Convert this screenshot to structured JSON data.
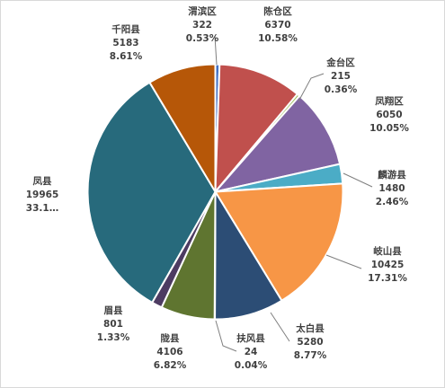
{
  "chart_data": {
    "type": "pie",
    "title": "",
    "start_angle_deg": 0,
    "direction": "clockwise",
    "slices": [
      {
        "name": "渭滨区",
        "value": "322",
        "pct": "0.53%",
        "color": "#4472c4"
      },
      {
        "name": "陈仓区",
        "value": "6370",
        "pct": "10.58%",
        "color": "#c0504d"
      },
      {
        "name": "金台区",
        "value": "215",
        "pct": "0.36%",
        "color": "#9bbb59"
      },
      {
        "name": "凤翔区",
        "value": "6050",
        "pct": "10.05%",
        "color": "#8064a2"
      },
      {
        "name": "麟游县",
        "value": "1480",
        "pct": "2.46%",
        "color": "#4bacc6"
      },
      {
        "name": "岐山县",
        "value": "10425",
        "pct": "17.31%",
        "color": "#f79646"
      },
      {
        "name": "太白县",
        "value": "5280",
        "pct": "8.77%",
        "color": "#2c4d75"
      },
      {
        "name": "扶风县",
        "value": "24",
        "pct": "0.04%",
        "color": "#772c2a"
      },
      {
        "name": "陇县",
        "value": "4106",
        "pct": "6.82%",
        "color": "#5f7530"
      },
      {
        "name": "眉县",
        "value": "801",
        "pct": "1.33%",
        "color": "#4d3b62"
      },
      {
        "name": "凤县",
        "value": "19965",
        "pct": "33.1…",
        "color": "#276a7c"
      },
      {
        "name": "千阳县",
        "value": "5183",
        "pct": "8.61%",
        "color": "#b65708"
      }
    ]
  }
}
